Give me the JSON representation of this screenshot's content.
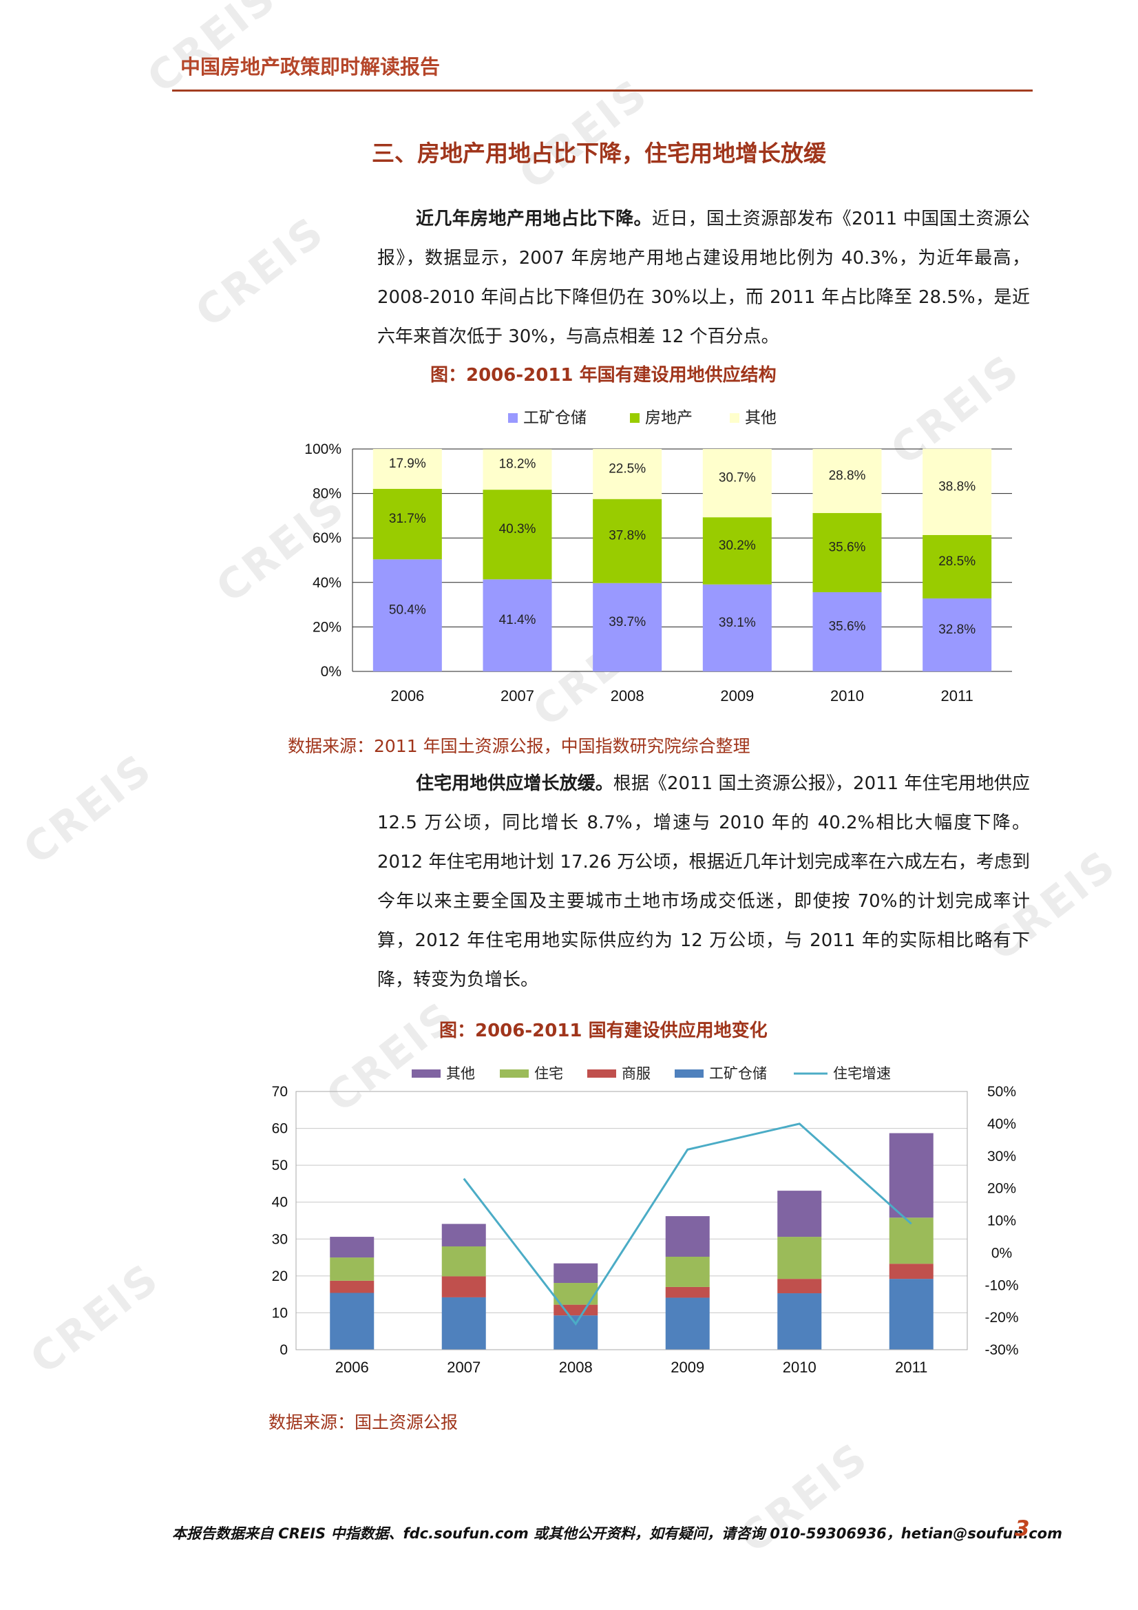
{
  "header": {
    "title": "中国房地产政策即时解读报告"
  },
  "section": {
    "title": "三、房地产用地占比下降，住宅用地增长放缓"
  },
  "para1": {
    "lead": "近几年房地产用地占比下降。",
    "body": "近日，国土资源部发布《2011 中国国土资源公报》，数据显示，2007 年房地产用地占建设用地比例为 40.3%，为近年最高，2008-2010 年间占比下降但仍在 30%以上，而 2011 年占比降至 28.5%，是近六年来首次低于 30%，与高点相差 12 个百分点。"
  },
  "figure1": {
    "title": "图：2006-2011 年国有建设用地供应结构",
    "source": "数据来源：2011 年国土资源公报，中国指数研究院综合整理"
  },
  "para2": {
    "lead": "住宅用地供应增长放缓。",
    "body": "根据《2011 国土资源公报》，2011 年住宅用地供应 12.5 万公顷，同比增长 8.7%，增速与 2010 年的 40.2%相比大幅度下降。2012 年住宅用地计划 17.26 万公顷，根据近几年计划完成率在六成左右，考虑到今年以来主要全国及主要城市土地市场成交低迷，即使按 70%的计划完成率计算，2012 年住宅用地实际供应约为 12 万公顷，与 2011 年的实际相比略有下降，转变为负增长。"
  },
  "figure2": {
    "title": "图：2006-2011 国有建设供应用地变化",
    "source": "数据来源：国土资源公报"
  },
  "footer": {
    "text": "本报告数据来自 CREIS 中指数据、fdc.soufun.com 或其他公开资料，如有疑问，请咨询 010-59306936，hetian@soufun.com",
    "page": "3"
  },
  "watermark": "CREIS",
  "chart_data": [
    {
      "type": "bar",
      "stacked": "percent",
      "categories": [
        "2006",
        "2007",
        "2008",
        "2009",
        "2010",
        "2011"
      ],
      "series": [
        {
          "name": "工矿仓储",
          "color": "#9999ff",
          "values": [
            50.4,
            41.4,
            39.7,
            39.1,
            35.6,
            32.8
          ],
          "labels": [
            "50.4%",
            "41.4%",
            "39.7%",
            "39.1%",
            "35.6%",
            "32.8%"
          ]
        },
        {
          "name": "房地产",
          "color": "#99cc00",
          "values": [
            31.7,
            40.3,
            37.8,
            30.2,
            35.6,
            28.5
          ],
          "labels": [
            "31.7%",
            "40.3%",
            "37.8%",
            "30.2%",
            "35.6%",
            "28.5%"
          ]
        },
        {
          "name": "其他",
          "color": "#ffffcc",
          "values": [
            17.9,
            18.2,
            22.5,
            30.7,
            28.8,
            38.8
          ],
          "labels": [
            "17.9%",
            "18.2%",
            "22.5%",
            "30.7%",
            "28.8%",
            "38.8%"
          ]
        }
      ],
      "yticks": [
        "0%",
        "20%",
        "40%",
        "60%",
        "80%",
        "100%"
      ],
      "ylim": [
        0,
        100
      ],
      "legend": "top",
      "grid": true
    },
    {
      "type": "bar",
      "stacked": true,
      "categories": [
        "2006",
        "2007",
        "2008",
        "2009",
        "2010",
        "2011"
      ],
      "series": [
        {
          "name": "工矿仓储",
          "color": "#4f81bd",
          "values": [
            15.4,
            14.2,
            9.3,
            14.1,
            15.3,
            19.2
          ]
        },
        {
          "name": "商服",
          "color": "#c0504d",
          "values": [
            3.3,
            5.7,
            2.9,
            2.9,
            3.9,
            4.1
          ]
        },
        {
          "name": "住宅",
          "color": "#9bbb59",
          "values": [
            6.3,
            8.1,
            5.9,
            8.2,
            11.4,
            12.5
          ]
        },
        {
          "name": "其他",
          "color": "#8064a2",
          "values": [
            5.6,
            6.1,
            5.3,
            11.0,
            12.5,
            22.9
          ]
        }
      ],
      "line": {
        "name": "住宅增速",
        "color": "#4bacc6",
        "axis": "right",
        "values": [
          null,
          23,
          -22,
          32,
          40,
          9
        ]
      },
      "yticks": [
        "0",
        "10",
        "20",
        "30",
        "40",
        "50",
        "60",
        "70"
      ],
      "ylim": [
        0,
        70
      ],
      "y2ticks": [
        "-30%",
        "-20%",
        "-10%",
        "0%",
        "10%",
        "20%",
        "30%",
        "40%",
        "50%"
      ],
      "y2lim": [
        -30,
        50
      ],
      "legend": "top",
      "grid": true
    }
  ]
}
